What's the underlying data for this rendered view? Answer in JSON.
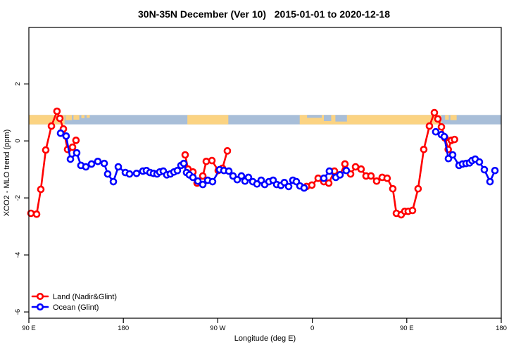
{
  "title": "30N-35N December (Ver 10)   2015-01-01 to 2020-12-18",
  "chart_data": {
    "type": "line",
    "title": "30N-35N December (Ver 10)   2015-01-01 to 2020-12-18",
    "xlabel": "Longitude (deg E)",
    "ylabel": "XCO2 - MLO trend (ppm)",
    "xlim": [
      90,
      540
    ],
    "ylim": [
      -6.22,
      3.98
    ],
    "grid": false,
    "x_ticks": [
      {
        "v": 90,
        "label": "90 E"
      },
      {
        "v": 180,
        "label": "180"
      },
      {
        "v": 270,
        "label": "90 W"
      },
      {
        "v": 360,
        "label": "0"
      },
      {
        "v": 450,
        "label": "90 E"
      },
      {
        "v": 540,
        "label": "180"
      }
    ],
    "y_ticks": [
      {
        "v": 2,
        "label": "2"
      },
      {
        "v": 0,
        "label": "0"
      },
      {
        "v": -2,
        "label": "-2"
      },
      {
        "v": -4,
        "label": "-4"
      },
      {
        "v": -6,
        "label": "-6"
      }
    ],
    "map_strip": {
      "comment": "land/ocean mask of the 30N-35N latitude band drawn as a horizontal ribbon",
      "y_range": [
        0.58,
        0.91
      ],
      "land_color": "#fbd382",
      "ocean_color": "#a8bed8",
      "ocean_base": [
        90,
        540
      ],
      "land_segments": [
        {
          "from": 90,
          "to": 124
        },
        {
          "from": 241,
          "to": 280
        },
        {
          "from": 348,
          "to": 483
        }
      ],
      "land_specks": [
        {
          "from": 125,
          "to": 131,
          "h": 0.55
        },
        {
          "from": 132.5,
          "to": 138,
          "h": 0.5
        },
        {
          "from": 140,
          "to": 143,
          "h": 0.35
        },
        {
          "from": 145,
          "to": 148,
          "h": 0.3
        },
        {
          "from": 486.5,
          "to": 490,
          "h": 0.5
        },
        {
          "from": 491.5,
          "to": 497.5,
          "h": 0.55
        }
      ],
      "ocean_patches": [
        {
          "from": 355,
          "to": 369,
          "h": 0.3
        },
        {
          "from": 371,
          "to": 378,
          "h": 0.65
        },
        {
          "from": 382,
          "to": 393,
          "h": 0.7
        }
      ]
    },
    "series": [
      {
        "name": "Land (Nadir&Glint)",
        "color": "#ff0000",
        "segments": [
          [
            [
              92,
              -2.54
            ],
            [
              97.4,
              -2.57
            ],
            [
              101.4,
              -1.7
            ],
            [
              106.1,
              -0.32
            ],
            [
              111.5,
              0.52
            ],
            [
              116.8,
              1.04
            ],
            [
              119.5,
              0.79
            ],
            [
              122.9,
              0.42
            ],
            [
              126.9,
              -0.3
            ],
            [
              131.6,
              -0.22
            ],
            [
              134.9,
              0.02
            ]
          ],
          [
            [
              238.9,
              -0.49
            ],
            [
              241.6,
              -0.99
            ],
            [
              246.3,
              -1.09
            ],
            [
              250.3,
              -1.48
            ],
            [
              255.7,
              -1.23
            ],
            [
              259,
              -0.72
            ],
            [
              264.4,
              -0.69
            ],
            [
              270.4,
              -1.04
            ],
            [
              274.4,
              -0.96
            ],
            [
              279.1,
              -0.35
            ]
          ],
          [
            [
              354.5,
              -1.6
            ],
            [
              359.6,
              -1.55
            ],
            [
              365.6,
              -1.31
            ],
            [
              371,
              -1.43
            ],
            [
              375.7,
              -1.48
            ],
            [
              381.1,
              -1.06
            ],
            [
              386.4,
              -1.19
            ],
            [
              391.1,
              -0.81
            ],
            [
              396.5,
              -1.16
            ],
            [
              401.2,
              -0.91
            ],
            [
              406.5,
              -0.99
            ],
            [
              411.2,
              -1.23
            ],
            [
              415.9,
              -1.23
            ],
            [
              421.3,
              -1.41
            ],
            [
              426.6,
              -1.28
            ],
            [
              431.3,
              -1.31
            ],
            [
              436.7,
              -1.68
            ],
            [
              440.1,
              -2.54
            ],
            [
              444.7,
              -2.59
            ],
            [
              448.1,
              -2.47
            ],
            [
              451.4,
              -2.47
            ],
            [
              455.5,
              -2.44
            ],
            [
              460.8,
              -1.68
            ],
            [
              466.2,
              -0.3
            ],
            [
              471.6,
              0.52
            ],
            [
              476.3,
              0.99
            ],
            [
              479.6,
              0.77
            ],
            [
              483,
              0.49
            ],
            [
              486.5,
              0.1
            ],
            [
              489.5,
              -0.3
            ],
            [
              492.5,
              0.02
            ],
            [
              495.5,
              0.05
            ]
          ]
        ]
      },
      {
        "name": "Ocean (Glint)",
        "color": "#0000ff",
        "segments": [
          [
            [
              120.2,
              0.27
            ],
            [
              125.5,
              0.17
            ],
            [
              129.6,
              -0.64
            ],
            [
              135.6,
              -0.42
            ],
            [
              139.6,
              -0.86
            ],
            [
              144.3,
              -0.91
            ],
            [
              149.7,
              -0.81
            ],
            [
              155.7,
              -0.72
            ],
            [
              161.8,
              -0.79
            ],
            [
              165.1,
              -1.16
            ],
            [
              170.5,
              -1.43
            ],
            [
              175.2,
              -0.91
            ],
            [
              181.9,
              -1.11
            ],
            [
              185.9,
              -1.16
            ],
            [
              192.6,
              -1.14
            ],
            [
              198.6,
              -1.06
            ],
            [
              202,
              -1.04
            ],
            [
              205.4,
              -1.11
            ],
            [
              208.7,
              -1.14
            ],
            [
              212.1,
              -1.16
            ],
            [
              214.7,
              -1.09
            ],
            [
              218.1,
              -1.06
            ],
            [
              221.4,
              -1.19
            ],
            [
              224.8,
              -1.16
            ],
            [
              228.2,
              -1.09
            ],
            [
              231.5,
              -1.04
            ],
            [
              234.9,
              -0.86
            ],
            [
              237.6,
              -0.79
            ],
            [
              240.2,
              -1.11
            ],
            [
              242.9,
              -1.19
            ],
            [
              246.3,
              -1.28
            ],
            [
              251,
              -1.41
            ],
            [
              255.7,
              -1.53
            ],
            [
              260.4,
              -1.38
            ],
            [
              265,
              -1.43
            ],
            [
              271.7,
              -1.01
            ],
            [
              275.8,
              -1.04
            ],
            [
              280.5,
              -1.06
            ],
            [
              284.5,
              -1.23
            ],
            [
              288.5,
              -1.36
            ],
            [
              292.5,
              -1.23
            ],
            [
              295.9,
              -1.41
            ],
            [
              299.2,
              -1.28
            ],
            [
              303.3,
              -1.43
            ],
            [
              307.3,
              -1.51
            ],
            [
              311.3,
              -1.38
            ],
            [
              314.7,
              -1.53
            ],
            [
              318.7,
              -1.43
            ],
            [
              322.7,
              -1.38
            ],
            [
              326.1,
              -1.53
            ],
            [
              330.1,
              -1.56
            ],
            [
              333.4,
              -1.46
            ],
            [
              337.5,
              -1.6
            ],
            [
              341.5,
              -1.38
            ],
            [
              344.8,
              -1.43
            ],
            [
              348.2,
              -1.58
            ],
            [
              352.2,
              -1.65
            ]
          ],
          [
            [
              371,
              -1.31
            ],
            [
              376.3,
              -1.06
            ],
            [
              382.4,
              -1.28
            ],
            [
              386.4,
              -1.19
            ],
            [
              392.4,
              -1.04
            ]
          ],
          [
            [
              477.6,
              0.32
            ],
            [
              483,
              0.22
            ],
            [
              485.7,
              0.15
            ],
            [
              489.7,
              -0.62
            ],
            [
              493.7,
              -0.49
            ],
            [
              499.8,
              -0.86
            ],
            [
              503.1,
              -0.81
            ],
            [
              506.5,
              -0.79
            ],
            [
              509.8,
              -0.77
            ],
            [
              512.2,
              -0.69
            ],
            [
              515.2,
              -0.64
            ],
            [
              519.2,
              -0.74
            ],
            [
              523.9,
              -1.01
            ],
            [
              529.3,
              -1.43
            ],
            [
              534,
              -1.04
            ]
          ]
        ]
      }
    ],
    "legend": {
      "position": "bottom-left",
      "entries": [
        "Land (Nadir&Glint)",
        "Ocean (Glint)"
      ]
    }
  }
}
